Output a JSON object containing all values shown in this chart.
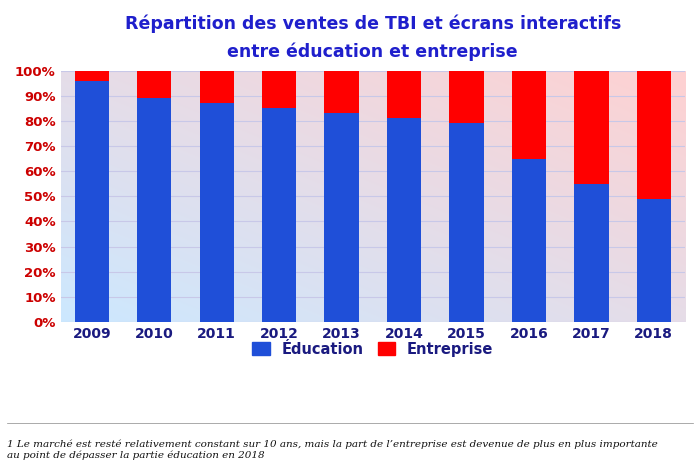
{
  "years": [
    "2009",
    "2010",
    "2011",
    "2012",
    "2013",
    "2014",
    "2015",
    "2016",
    "2017",
    "2018"
  ],
  "education": [
    96,
    89,
    87,
    85,
    83,
    81,
    79,
    65,
    55,
    49
  ],
  "entreprise": [
    4,
    11,
    13,
    15,
    17,
    19,
    21,
    35,
    45,
    51
  ],
  "color_education": "#1F4FD8",
  "color_entreprise": "#FF0000",
  "title_line1": "Répartition des ventes de TBI et écrans interactifs",
  "title_line2": "entre éducation et entreprise",
  "legend_education": "Éducation",
  "legend_entreprise": "Entreprise",
  "footnote": "1 Le marché est resté relativement constant sur 10 ans, mais la part de l’entreprise est devenue de plus en plus importante\nau point de dépasser la partie éducation en 2018",
  "yticks": [
    0,
    10,
    20,
    30,
    40,
    50,
    60,
    70,
    80,
    90,
    100
  ],
  "ylim": [
    0,
    100
  ],
  "title_color": "#1F1FCC",
  "title_fontsize": 12.5,
  "axis_label_color": "#CC0000",
  "xtick_color": "#1A1A80",
  "bar_width": 0.55,
  "grid_color": "#C8C8E8",
  "bg_bottom_left": "#CCE8FF",
  "bg_top_right": "#FFD0D0",
  "footnote_fontsize": 7.5
}
